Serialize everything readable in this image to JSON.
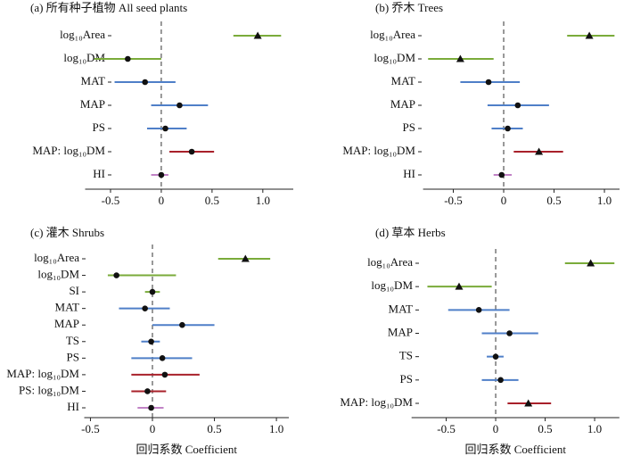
{
  "chart_data": [
    {
      "type": "forest",
      "title": "(a) 所有种子植物 All seed plants",
      "categories": [
        "log₁₀Area",
        "log₁₀DM",
        "MAT",
        "MAP",
        "PS",
        "MAP: log₁₀DM",
        "HI"
      ],
      "values": [
        0.95,
        -0.33,
        -0.16,
        0.18,
        0.04,
        0.3,
        0
      ],
      "lower": [
        0.71,
        -0.66,
        -0.46,
        -0.1,
        -0.14,
        0.08,
        -0.1
      ],
      "upper": [
        1.18,
        0,
        0.14,
        0.46,
        0.25,
        0.52,
        0.07
      ],
      "colors": [
        "#7aab3a",
        "#7aab3a",
        "#4f7fc8",
        "#4f7fc8",
        "#4f7fc8",
        "#a8202a",
        "#c183c6"
      ],
      "markers": [
        "triangle",
        "circle",
        "circle",
        "circle",
        "circle",
        "circle",
        "circle"
      ],
      "xlim": [
        -0.75,
        1.3
      ],
      "xticks": [
        -0.5,
        0,
        0.5,
        {
          "value": 1,
          "label": "1.0"
        }
      ]
    },
    {
      "type": "forest",
      "title": "(b) 乔木 Trees",
      "categories": [
        "log₁₀Area",
        "log₁₀DM",
        "MAT",
        "MAP",
        "PS",
        "MAP: log₁₀DM",
        "HI"
      ],
      "values": [
        0.85,
        -0.43,
        -0.15,
        0.14,
        0.04,
        0.35,
        -0.02
      ],
      "lower": [
        0.63,
        -0.75,
        -0.43,
        -0.16,
        -0.12,
        0.1,
        -0.1
      ],
      "upper": [
        1.1,
        -0.1,
        0.16,
        0.45,
        0.19,
        0.59,
        0.08
      ],
      "colors": [
        "#7aab3a",
        "#7aab3a",
        "#4f7fc8",
        "#4f7fc8",
        "#4f7fc8",
        "#a8202a",
        "#c183c6"
      ],
      "markers": [
        "triangle",
        "triangle",
        "circle",
        "circle",
        "circle",
        "triangle",
        "circle"
      ],
      "xlim": [
        -0.8,
        1.15
      ],
      "xticks": [
        -0.5,
        0,
        0.5,
        {
          "value": 1,
          "label": "1.0"
        }
      ]
    },
    {
      "type": "forest",
      "title": "(c) 灌木 Shrubs",
      "xlabel": "回归系数 Coefficient",
      "categories": [
        "log₁₀Area",
        "log₁₀DM",
        "SI",
        "MAT",
        "MAP",
        "TS",
        "PS",
        "MAP: log₁₀DM",
        "PS: log₁₀DM",
        "HI"
      ],
      "values": [
        0.75,
        -0.29,
        0,
        -0.06,
        0.24,
        -0.01,
        0.08,
        0.1,
        -0.04,
        -0.01
      ],
      "lower": [
        0.53,
        -0.36,
        -0.06,
        -0.27,
        0,
        -0.09,
        -0.17,
        -0.17,
        -0.17,
        -0.12
      ],
      "upper": [
        0.95,
        0.19,
        0.06,
        0.14,
        0.5,
        0.06,
        0.32,
        0.38,
        0.11,
        0.09
      ],
      "colors": [
        "#7aab3a",
        "#7aab3a",
        "#7aab3a",
        "#4f7fc8",
        "#4f7fc8",
        "#4f7fc8",
        "#4f7fc8",
        "#a8202a",
        "#a8202a",
        "#c183c6"
      ],
      "markers": [
        "triangle",
        "circle",
        "circle",
        "circle",
        "circle",
        "circle",
        "circle",
        "circle",
        "circle",
        "circle"
      ],
      "xlim": [
        -0.55,
        1.1
      ],
      "xticks": [
        -0.5,
        0,
        0.5,
        {
          "value": 1,
          "label": "1.0"
        }
      ]
    },
    {
      "type": "forest",
      "title": "(d) 草本 Herbs",
      "xlabel": "回归系数 Coefficient",
      "categories": [
        "log₁₀Area",
        "log₁₀DM",
        "MAT",
        "MAP",
        "TS",
        "PS",
        "MAP: log₁₀DM"
      ],
      "values": [
        0.96,
        -0.37,
        -0.17,
        0.14,
        0,
        0.05,
        0.33
      ],
      "lower": [
        0.7,
        -0.69,
        -0.48,
        -0.14,
        -0.09,
        -0.14,
        0.12
      ],
      "upper": [
        1.2,
        -0.04,
        0.14,
        0.43,
        0.08,
        0.23,
        0.56
      ],
      "colors": [
        "#7aab3a",
        "#7aab3a",
        "#4f7fc8",
        "#4f7fc8",
        "#4f7fc8",
        "#4f7fc8",
        "#a8202a"
      ],
      "markers": [
        "triangle",
        "triangle",
        "circle",
        "circle",
        "circle",
        "circle",
        "triangle"
      ],
      "xlim": [
        -0.85,
        1.25
      ],
      "xticks": [
        -0.5,
        0,
        0.5,
        {
          "value": 1,
          "label": "1.0"
        }
      ]
    }
  ]
}
